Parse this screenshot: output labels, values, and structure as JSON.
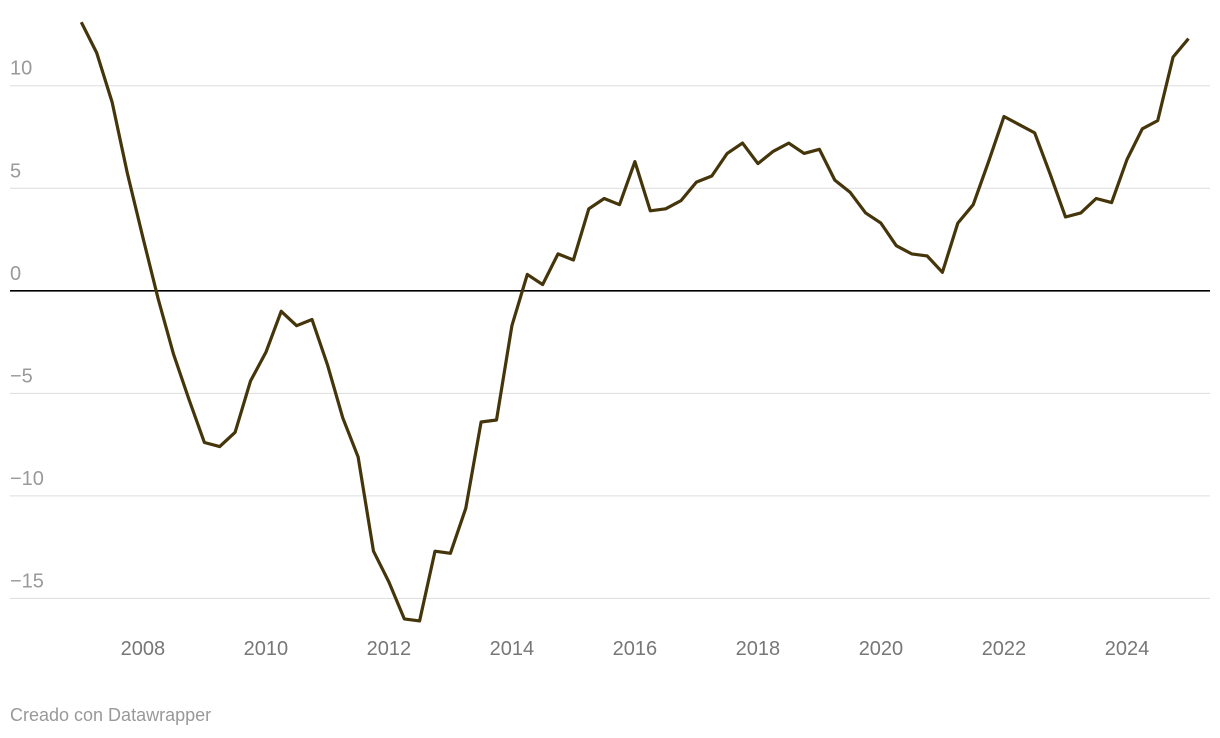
{
  "chart_data": {
    "type": "line",
    "x": [
      2007,
      2007.25,
      2007.5,
      2007.75,
      2008,
      2008.25,
      2008.5,
      2008.75,
      2009,
      2009.25,
      2009.5,
      2009.75,
      2010,
      2010.25,
      2010.5,
      2010.75,
      2011,
      2011.25,
      2011.5,
      2011.75,
      2012,
      2012.25,
      2012.5,
      2012.75,
      2013,
      2013.25,
      2013.5,
      2013.75,
      2014,
      2014.25,
      2014.5,
      2014.75,
      2015,
      2015.25,
      2015.5,
      2015.75,
      2016,
      2016.25,
      2016.5,
      2016.75,
      2017,
      2017.25,
      2017.5,
      2017.75,
      2018,
      2018.25,
      2018.5,
      2018.75,
      2019,
      2019.25,
      2019.5,
      2019.75,
      2020,
      2020.25,
      2020.5,
      2020.75,
      2021,
      2021.25,
      2021.5,
      2021.75,
      2022,
      2022.25,
      2022.5,
      2022.75,
      2023,
      2023.25,
      2023.5,
      2023.75,
      2024,
      2024.25,
      2024.5,
      2024.75,
      2025
    ],
    "series": [
      {
        "color": "#45350a",
        "values": [
          13.1,
          11.6,
          9.2,
          5.7,
          2.6,
          -0.4,
          -3.1,
          -5.3,
          -7.4,
          -7.6,
          -6.9,
          -4.4,
          -3.0,
          -1.0,
          -1.7,
          -1.4,
          -3.6,
          -6.2,
          -8.1,
          -12.7,
          -14.2,
          -16.0,
          -16.1,
          -12.7,
          -12.8,
          -10.6,
          -6.4,
          -6.3,
          -1.7,
          0.8,
          0.3,
          1.8,
          1.5,
          4.0,
          4.5,
          4.2,
          6.3,
          3.9,
          4.0,
          4.4,
          5.3,
          5.6,
          6.7,
          7.2,
          6.2,
          6.8,
          7.2,
          6.7,
          6.9,
          5.4,
          4.8,
          3.8,
          3.3,
          2.2,
          1.8,
          1.7,
          0.9,
          3.3,
          4.2,
          6.3,
          8.5,
          8.1,
          7.7,
          5.7,
          3.6,
          3.8,
          4.5,
          4.3,
          6.4,
          7.9,
          8.3,
          11.4,
          12.3
        ]
      }
    ],
    "xlim": [
      2005.84,
      2025.35
    ],
    "xticks": [
      2008,
      2010,
      2012,
      2014,
      2016,
      2018,
      2020,
      2022,
      2024
    ],
    "ylim": [
      -16.2,
      13.4
    ],
    "yticks": [
      {
        "value": -15,
        "label": "−15"
      },
      {
        "value": -10,
        "label": "−10"
      },
      {
        "value": -5,
        "label": "−5"
      },
      0,
      5,
      10
    ],
    "grid": true,
    "footer": "Creado con Datawrapper"
  }
}
